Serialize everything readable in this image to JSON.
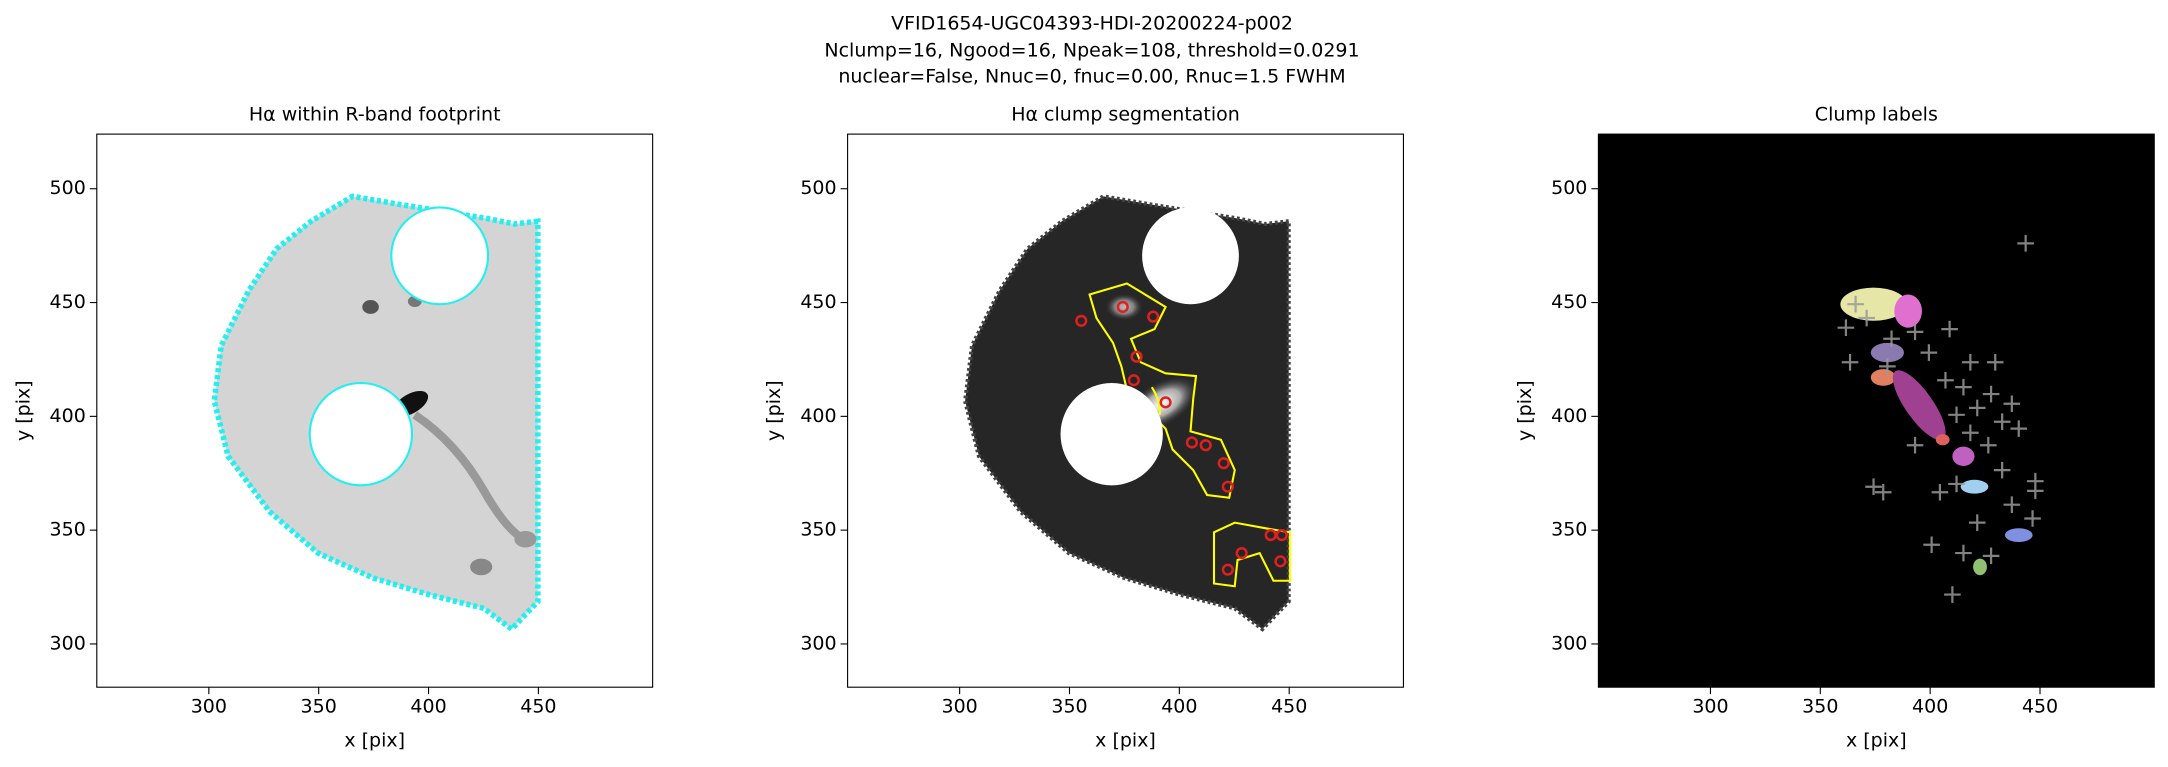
{
  "title_lines": [
    "VFID1654-UGC04393-HDI-20200224-p002",
    "Nclump=16, Ngood=16, Npeak=108, threshold=0.0291",
    "nuclear=False, Nnuc=0, fnuc=0.00, Rnuc=1.5 FWHM"
  ],
  "chart_data": [
    {
      "type": "image",
      "title": "Hα within R-band footprint",
      "xlabel": "x [pix]",
      "ylabel": "y [pix]",
      "xlim": [
        249,
        502
      ],
      "ylim": [
        281,
        524
      ],
      "xticks": [
        300,
        350,
        400,
        450
      ],
      "yticks": [
        300,
        350,
        400,
        450,
        500
      ]
    },
    {
      "type": "image",
      "title": "Hα clump segmentation",
      "xlabel": "x [pix]",
      "ylabel": "y [pix]",
      "xlim": [
        249,
        502
      ],
      "ylim": [
        281,
        524
      ],
      "xticks": [
        300,
        350,
        400,
        450
      ],
      "yticks": [
        300,
        350,
        400,
        450,
        500
      ]
    },
    {
      "type": "image",
      "title": "Clump labels",
      "xlabel": "x [pix]",
      "ylabel": "y [pix]",
      "xlim": [
        249,
        502
      ],
      "ylim": [
        281,
        524
      ],
      "xticks": [
        300,
        350,
        400,
        450
      ],
      "yticks": [
        300,
        350,
        400,
        450,
        500
      ]
    }
  ]
}
